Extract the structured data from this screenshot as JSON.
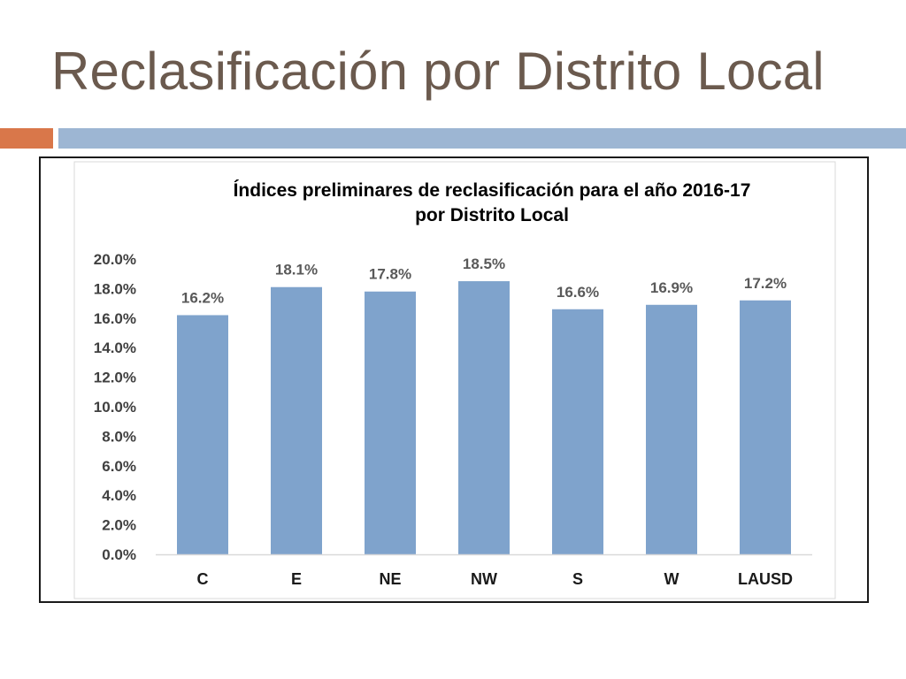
{
  "slide": {
    "title": "Reclasificación por Distrito Local"
  },
  "colors": {
    "title": "#6b5a4e",
    "accent_orange": "#d9774a",
    "accent_blue": "#9db6d3",
    "bar_fill": "#7fa3cc",
    "label_text": "#595959"
  },
  "chart_data": {
    "type": "bar",
    "title": "Índices preliminares de reclasificación para el año 2016-17",
    "subtitle": "por Distrito Local",
    "categories": [
      "C",
      "E",
      "NE",
      "NW",
      "S",
      "W",
      "LAUSD"
    ],
    "values": [
      16.2,
      18.1,
      17.8,
      18.5,
      16.6,
      16.9,
      17.2
    ],
    "value_labels": [
      "16.2%",
      "18.1%",
      "17.8%",
      "18.5%",
      "16.6%",
      "16.9%",
      "17.2%"
    ],
    "y_ticks": [
      "0.0%",
      "2.0%",
      "4.0%",
      "6.0%",
      "8.0%",
      "10.0%",
      "12.0%",
      "14.0%",
      "16.0%",
      "18.0%",
      "20.0%"
    ],
    "ylim": [
      0,
      20
    ],
    "grid": false
  }
}
